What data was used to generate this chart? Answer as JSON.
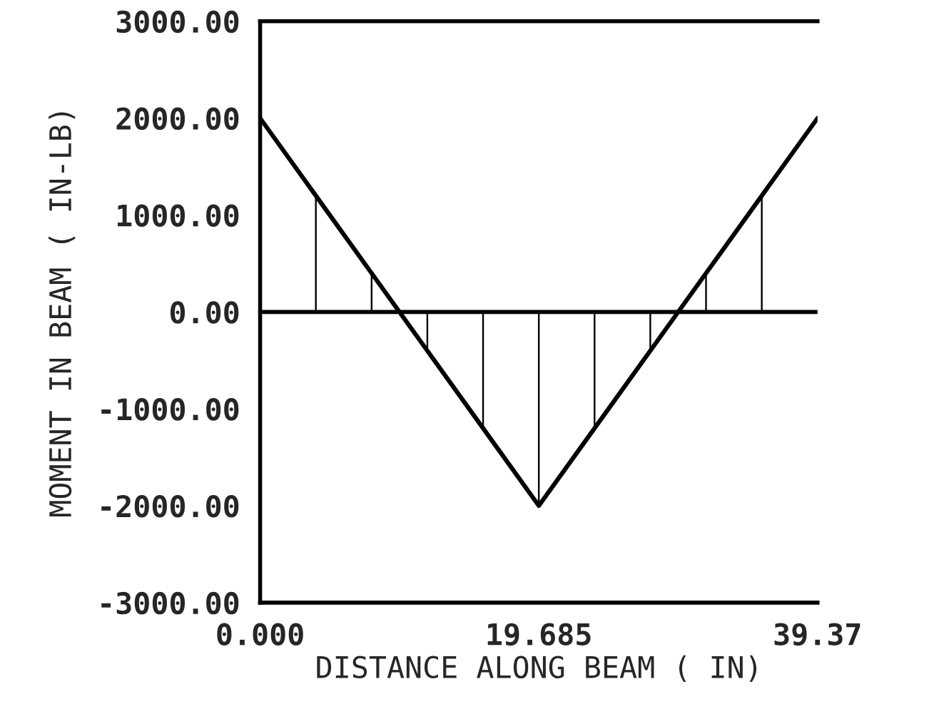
{
  "chart_data": {
    "type": "line",
    "xlabel": "DISTANCE ALONG BEAM ( IN)",
    "ylabel": "MOMENT IN BEAM ( IN-LB)",
    "x": [
      0,
      3.937,
      7.874,
      11.811,
      15.748,
      19.685,
      23.622,
      27.559,
      31.496,
      35.433,
      39.37
    ],
    "series": [
      {
        "color": "#000000",
        "values": [
          2000,
          1200,
          400,
          -400,
          -1200,
          -2000,
          -1200,
          -400,
          400,
          1200,
          2000
        ]
      },
      {
        "type": "bar",
        "color": "#000000",
        "values": [
          null,
          1200,
          400,
          -400,
          -1200,
          -2000,
          -1200,
          -400,
          400,
          1200,
          null
        ]
      }
    ],
    "xlim": [
      0,
      39.37
    ],
    "xticks": [
      {
        "value": 0,
        "label": "0.000"
      },
      19.685,
      39.37
    ],
    "ylim": [
      -3000,
      3000
    ],
    "yticks": [
      {
        "value": -3000,
        "label": "-3000.00"
      },
      {
        "value": -2000,
        "label": "-2000.00"
      },
      {
        "value": -1000,
        "label": "-1000.00"
      },
      {
        "value": 0,
        "label": "0.00"
      },
      {
        "value": 1000,
        "label": "1000.00"
      },
      {
        "value": 2000,
        "label": "2000.00"
      },
      {
        "value": 3000,
        "label": "3000.00"
      }
    ],
    "ref_lines": [
      {
        "axis": "y",
        "value": 0,
        "color": "#000000"
      }
    ],
    "grid": false,
    "legend": false
  }
}
